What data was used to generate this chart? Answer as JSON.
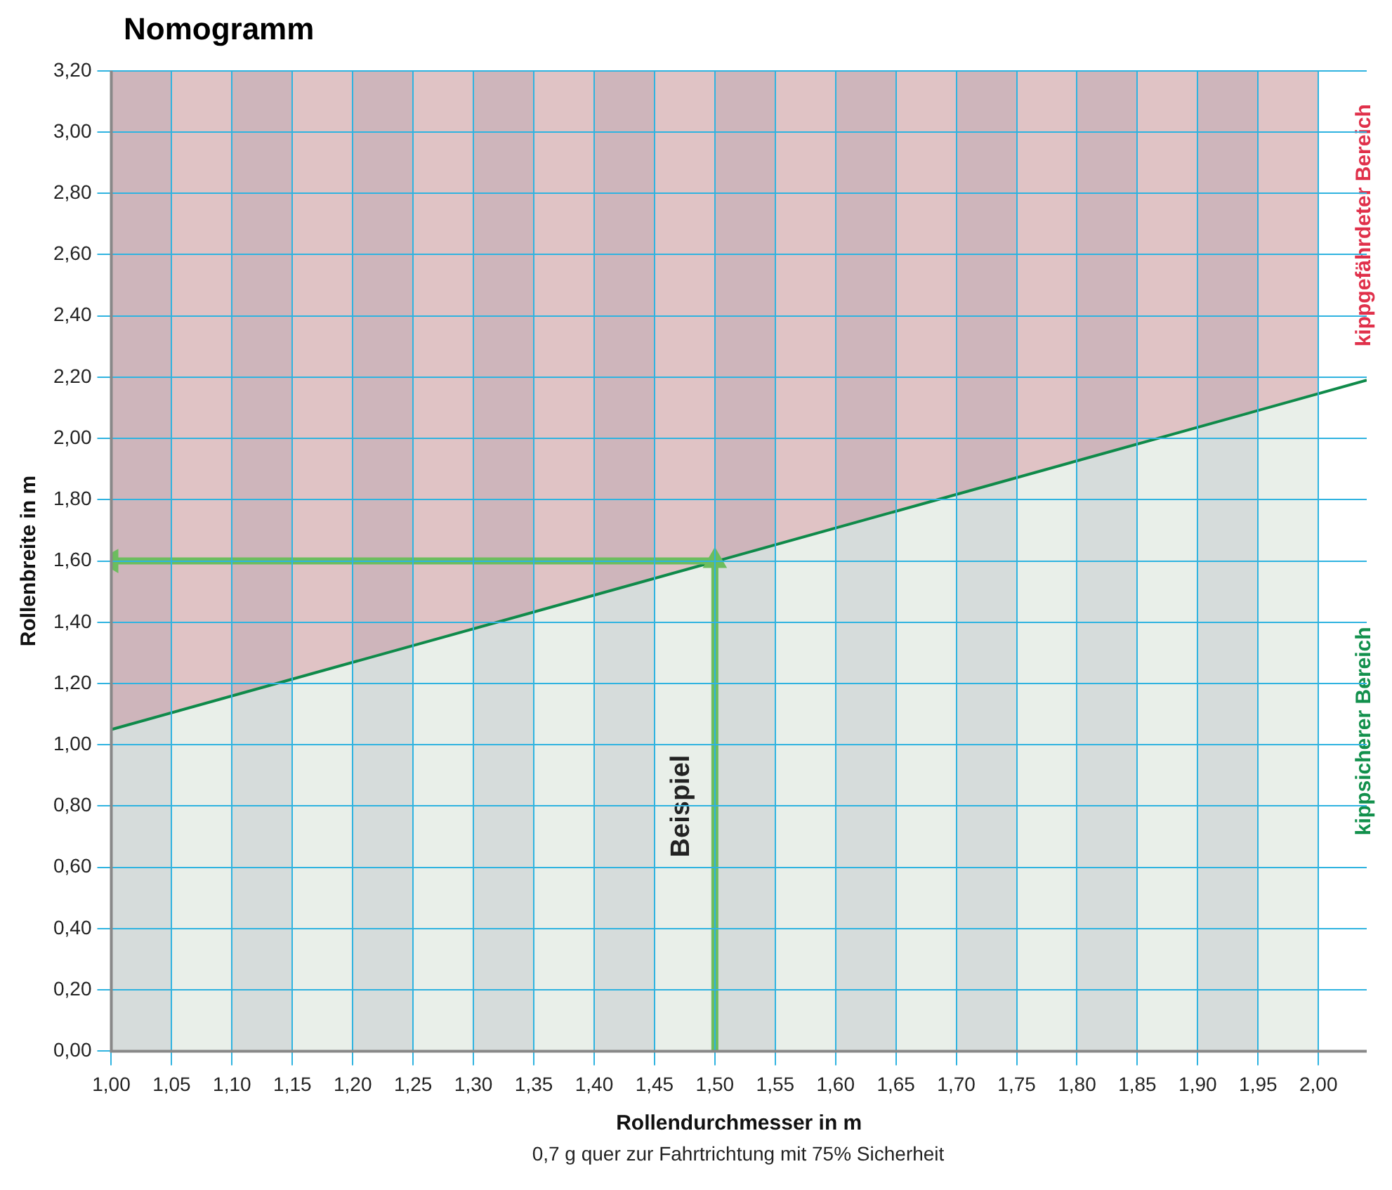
{
  "chart_data": {
    "type": "line",
    "title": "Nomogramm",
    "xlabel": "Rollendurchmesser in m",
    "ylabel": "Rollenbreite in m",
    "annotations": [
      "kippgefährdeter Bereich",
      "kippsicherer Bereich",
      "0,7 g quer zur Fahrtrichtung mit 75% Sicherheit"
    ],
    "xlim": [
      1.0,
      2.04
    ],
    "ylim": [
      0,
      3.2
    ],
    "xticks": [
      {
        "value": 1.0,
        "label": "1,00"
      },
      {
        "value": 1.05,
        "label": "1,05"
      },
      {
        "value": 1.1,
        "label": "1,10"
      },
      {
        "value": 1.15,
        "label": "1,15"
      },
      {
        "value": 1.2,
        "label": "1,20"
      },
      {
        "value": 1.25,
        "label": "1,25"
      },
      {
        "value": 1.3,
        "label": "1,30"
      },
      {
        "value": 1.35,
        "label": "1,35"
      },
      {
        "value": 1.4,
        "label": "1,40"
      },
      {
        "value": 1.45,
        "label": "1,45"
      },
      {
        "value": 1.5,
        "label": "1,50"
      },
      {
        "value": 1.55,
        "label": "1,55"
      },
      {
        "value": 1.6,
        "label": "1,60"
      },
      {
        "value": 1.65,
        "label": "1,65"
      },
      {
        "value": 1.7,
        "label": "1,70"
      },
      {
        "value": 1.75,
        "label": "1,75"
      },
      {
        "value": 1.8,
        "label": "1,80"
      },
      {
        "value": 1.85,
        "label": "1,85"
      },
      {
        "value": 1.9,
        "label": "1,90"
      },
      {
        "value": 1.95,
        "label": "1,95"
      },
      {
        "value": 2.0,
        "label": "2,00"
      }
    ],
    "yticks": [
      {
        "value": 0,
        "label": "0,00"
      },
      {
        "value": 0.2,
        "label": "0,20"
      },
      {
        "value": 0.4,
        "label": "0,40"
      },
      {
        "value": 0.6,
        "label": "0,60"
      },
      {
        "value": 0.8,
        "label": "0,80"
      },
      {
        "value": 1.0,
        "label": "1,00"
      },
      {
        "value": 1.2,
        "label": "1,20"
      },
      {
        "value": 1.4,
        "label": "1,40"
      },
      {
        "value": 1.6,
        "label": "1,60"
      },
      {
        "value": 1.8,
        "label": "1,80"
      },
      {
        "value": 2.0,
        "label": "2,00"
      },
      {
        "value": 2.2,
        "label": "2,20"
      },
      {
        "value": 2.4,
        "label": "2,40"
      },
      {
        "value": 2.6,
        "label": "2,60"
      },
      {
        "value": 2.8,
        "label": "2,80"
      },
      {
        "value": 3.0,
        "label": "3,00"
      },
      {
        "value": 3.2,
        "label": "3,20"
      }
    ],
    "grid": true,
    "legend": false,
    "stacked": true,
    "bands": [
      {
        "axis": "x",
        "from": 1.0,
        "to": 1.05
      },
      {
        "axis": "x",
        "from": 1.1,
        "to": 1.15
      },
      {
        "axis": "x",
        "from": 1.2,
        "to": 1.25
      },
      {
        "axis": "x",
        "from": 1.3,
        "to": 1.35
      },
      {
        "axis": "x",
        "from": 1.4,
        "to": 1.45
      },
      {
        "axis": "x",
        "from": 1.5,
        "to": 1.55
      },
      {
        "axis": "x",
        "from": 1.6,
        "to": 1.65
      },
      {
        "axis": "x",
        "from": 1.7,
        "to": 1.75
      },
      {
        "axis": "x",
        "from": 1.8,
        "to": 1.85
      },
      {
        "axis": "x",
        "from": 1.9,
        "to": 1.95
      }
    ],
    "series": [
      {
        "type": "area",
        "color": "#e9efe9",
        "x": [
          1.0,
          2.0
        ],
        "values": [
          1.05,
          2.15
        ]
      },
      {
        "type": "area",
        "color": "#e0c3c5",
        "x": [
          1.0,
          2.0
        ],
        "values": [
          2.15,
          1.05
        ]
      },
      {
        "type": "line",
        "color": "#0f8a4a",
        "x": [
          1.0,
          2.04
        ],
        "values": [
          1.05,
          2.19
        ]
      },
      {
        "type": "line",
        "name": "Beispiel",
        "color": "#6cbd5e",
        "marker": "triangle",
        "x": [
          1.5,
          1.5,
          1.0
        ],
        "values": [
          0,
          1.6,
          1.6
        ]
      }
    ]
  }
}
